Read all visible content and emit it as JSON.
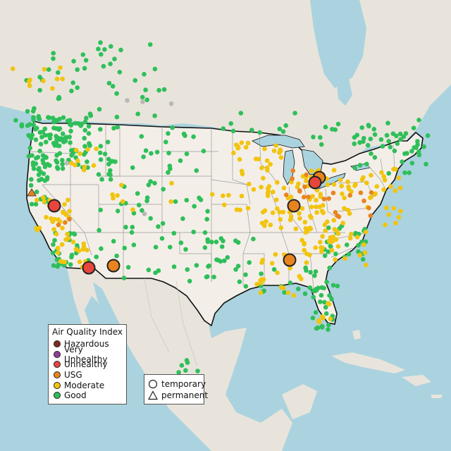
{
  "map": {
    "legend": {
      "title": "Air Quality Index",
      "categories": [
        {
          "label": "Hazardous",
          "color": "#7e2b1e"
        },
        {
          "label": "Very Unhealthy",
          "color": "#8f3f97"
        },
        {
          "label": "Unhealthy",
          "color": "#e8453c"
        },
        {
          "label": "USG",
          "color": "#e8841f"
        },
        {
          "label": "Moderate",
          "color": "#f2c40f"
        },
        {
          "label": "Good",
          "color": "#2fbf5a"
        }
      ]
    },
    "monitor_legend": {
      "items": [
        {
          "label": "temporary",
          "shape": "circle-icon"
        },
        {
          "label": "permanent",
          "shape": "triangle-icon"
        }
      ]
    },
    "colors": {
      "ocean": "#aad3df",
      "land_us": "#f2efe9",
      "land_other": "#e6e2da",
      "border": "#111111",
      "state_lines": "#9a9a9a",
      "lakes": "#aad3df"
    }
  }
}
